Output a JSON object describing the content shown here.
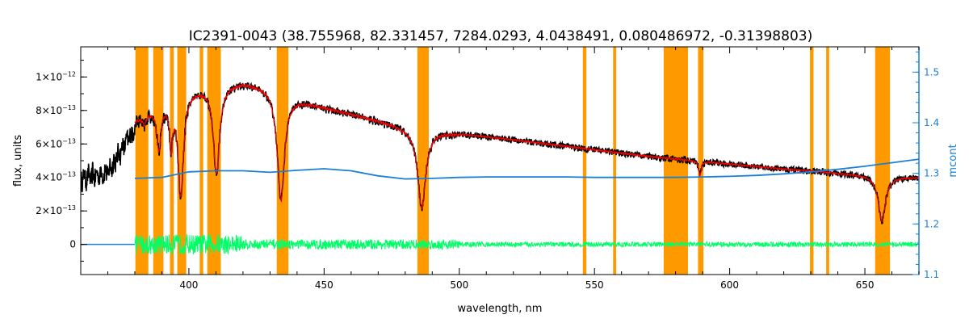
{
  "chart_data": {
    "type": "line",
    "title": "IC2391-0043    (38.755968, 82.331457, 7284.0293, 4.0438491, 0.080486972, -0.31398803)",
    "xlabel": "wavelength, nm",
    "ylabel": "flux, units",
    "y2label": "mcont",
    "xlim": [
      360,
      670
    ],
    "ylim": [
      -1.8e-13,
      1.18e-12
    ],
    "y2lim": [
      1.1,
      1.55
    ],
    "x_ticks": [
      400,
      450,
      500,
      550,
      600,
      650
    ],
    "y_ticks": [
      {
        "value": 0,
        "mant": "0",
        "exp": ""
      },
      {
        "value": 2e-13,
        "mant": "2×10",
        "exp": "−13"
      },
      {
        "value": 4e-13,
        "mant": "4×10",
        "exp": "−13"
      },
      {
        "value": 6e-13,
        "mant": "6×10",
        "exp": "−13"
      },
      {
        "value": 8e-13,
        "mant": "8×10",
        "exp": "−13"
      },
      {
        "value": 1e-12,
        "mant": "1×10",
        "exp": "−12"
      }
    ],
    "y2_ticks": [
      1.1,
      1.2,
      1.3,
      1.4,
      1.5
    ],
    "masked_regions": [
      [
        380.2,
        385.0
      ],
      [
        386.8,
        390.6
      ],
      [
        393.0,
        394.4
      ],
      [
        395.7,
        399.0
      ],
      [
        404.0,
        405.3
      ],
      [
        406.8,
        411.8
      ],
      [
        432.5,
        436.8
      ],
      [
        484.5,
        488.7
      ],
      [
        545.7,
        547.0
      ],
      [
        556.9,
        558.0
      ],
      [
        575.6,
        584.6
      ],
      [
        588.3,
        590.3
      ],
      [
        629.7,
        631.0
      ],
      [
        635.7,
        636.8
      ],
      [
        653.8,
        659.3
      ]
    ],
    "continuum": {
      "x": [
        380,
        390,
        400,
        410,
        420,
        430,
        440,
        450,
        460,
        470,
        480,
        490,
        500,
        510,
        520,
        530,
        540,
        550,
        560,
        570,
        580,
        590,
        600,
        610,
        620,
        630,
        640,
        650,
        660,
        670
      ],
      "y": [
        1.29,
        1.292,
        1.303,
        1.305,
        1.305,
        1.302,
        1.306,
        1.309,
        1.305,
        1.295,
        1.289,
        1.29,
        1.292,
        1.293,
        1.293,
        1.293,
        1.293,
        1.292,
        1.292,
        1.292,
        1.292,
        1.293,
        1.294,
        1.296,
        1.299,
        1.303,
        1.308,
        1.314,
        1.321,
        1.328
      ]
    },
    "continuum_flux": {
      "x": [
        360,
        370,
        380,
        390,
        400,
        410,
        420,
        430,
        440,
        450,
        460,
        470,
        480,
        490,
        500,
        510,
        520,
        530,
        540,
        550,
        560,
        570,
        580,
        590,
        600,
        610,
        620,
        630,
        640,
        650,
        660,
        670
      ],
      "y": [
        4.4e-13,
        4.8e-13,
        7.5e-13,
        8.6e-13,
        9.3e-13,
        9.6e-13,
        9.8e-13,
        9.5e-13,
        8.8e-13,
        8.3e-13,
        7.9e-13,
        7.5e-13,
        7.1e-13,
        6.9e-13,
        6.7e-13,
        6.5e-13,
        6.3e-13,
        6.1e-13,
        5.9e-13,
        5.7e-13,
        5.5e-13,
        5.3e-13,
        5.15e-13,
        5e-13,
        4.85e-13,
        4.7e-13,
        4.55e-13,
        4.45e-13,
        4.3e-13,
        4.2e-13,
        4.1e-13,
        4.05e-13
      ]
    },
    "absorption_lines": [
      {
        "center": 383.5,
        "depth": 5e-14,
        "width": 0.8
      },
      {
        "center": 388.9,
        "depth": 2.6e-13,
        "width": 1.0
      },
      {
        "center": 393.4,
        "depth": 2.6e-13,
        "width": 0.7
      },
      {
        "center": 397.0,
        "depth": 6e-13,
        "width": 1.2
      },
      {
        "center": 410.2,
        "depth": 5.2e-13,
        "width": 1.4
      },
      {
        "center": 434.0,
        "depth": 6.5e-13,
        "width": 1.6
      },
      {
        "center": 486.1,
        "depth": 4.7e-13,
        "width": 1.8
      },
      {
        "center": 589.0,
        "depth": 9e-14,
        "width": 0.5
      },
      {
        "center": 656.3,
        "depth": 2.7e-13,
        "width": 1.6
      }
    ],
    "series": [
      {
        "key": "observed",
        "color": "#000000"
      },
      {
        "key": "model",
        "color": "#ff0000"
      },
      {
        "key": "residual",
        "color": "#00ff66"
      },
      {
        "key": "mcont",
        "color": "#1a7fd6"
      }
    ],
    "mask_color": "#ff9900",
    "right_axis_color": "#1a7fd6",
    "grid": false,
    "legend": "none"
  }
}
